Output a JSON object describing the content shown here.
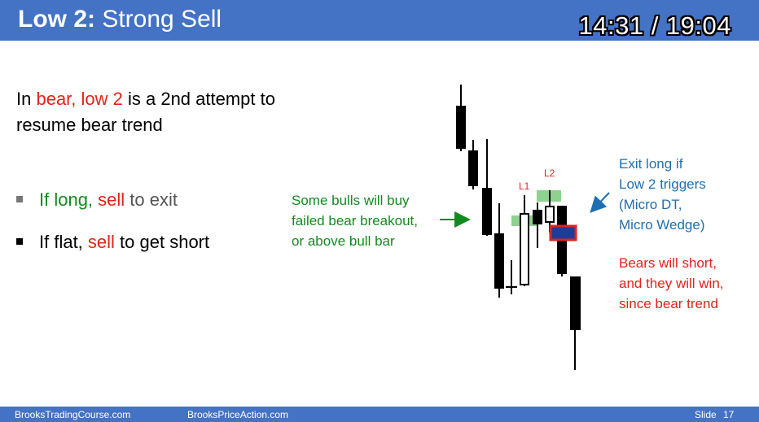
{
  "header": {
    "title_bold": "Low 2:",
    "title_rest": " Strong Sell",
    "timer": "14:31 / 19:04"
  },
  "intro": {
    "line1_pre": "In ",
    "line1_red": "bear, low 2",
    "line1_post": " is a 2nd attempt to",
    "line2": "resume bear trend"
  },
  "bullets": {
    "b1_green": "If long,",
    "b1_space": " ",
    "b1_red": "sell",
    "b1_post": " to exit",
    "b2_pre": "If flat, ",
    "b2_red": "sell",
    "b2_post": " to get short"
  },
  "notes": {
    "bulls": [
      "Some bulls will buy",
      "failed bear breakout,",
      "or above bull bar"
    ],
    "exit": [
      "Exit long if",
      "Low 2 triggers",
      "(Micro DT,",
      "Micro Wedge)"
    ],
    "bears": [
      "Bears will short,",
      "and they will win,",
      "since bear trend"
    ]
  },
  "chart_labels": {
    "l1": "L1",
    "l2": "L2"
  },
  "colors": {
    "header_blue": "#4472c4",
    "red": "#e2231a",
    "green": "#138a20",
    "blue_text": "#1f6fb0",
    "highlight_green": "#8fd18f",
    "signal_blue": "#1f3c99"
  },
  "footer": {
    "site1": "BrooksTradingCourse.com",
    "site2": "BrooksPriceAction.com",
    "slide_label": "Slide",
    "slide_number": "17"
  }
}
